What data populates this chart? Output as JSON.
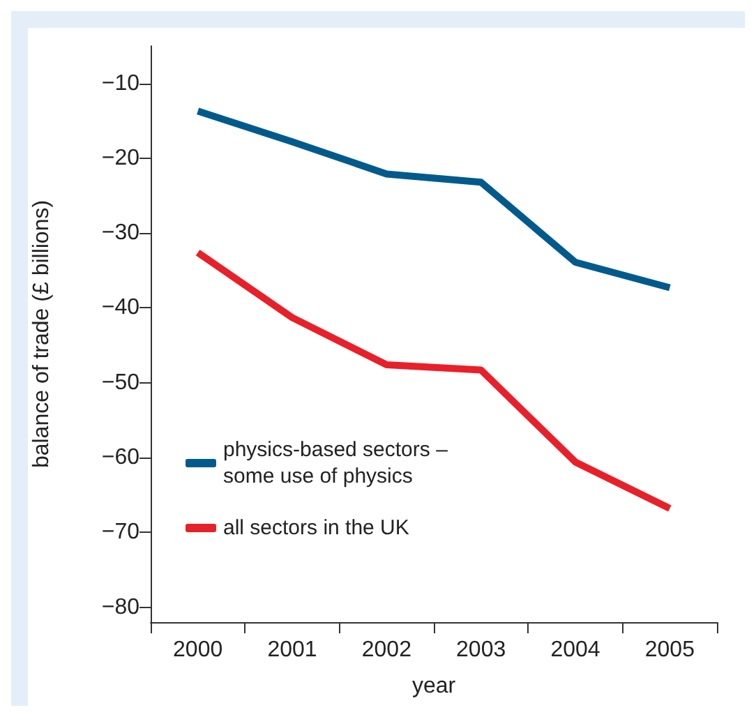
{
  "chart_data": {
    "type": "line",
    "xlabel": "year",
    "ylabel": "balance of trade (£ billions)",
    "categories": [
      "2000",
      "2001",
      "2002",
      "2003",
      "2004",
      "2005"
    ],
    "series": [
      {
        "name": "physics-based sectors –\nsome use of physics",
        "color": "#005a8c",
        "values": [
          -13.7,
          -17.8,
          -22.1,
          -23.2,
          -33.9,
          -37.3
        ]
      },
      {
        "name": "all sectors in the UK",
        "color": "#e8202a",
        "values": [
          -32.6,
          -41.3,
          -47.6,
          -48.3,
          -60.6,
          -66.8
        ]
      }
    ],
    "ylim": [
      -82,
      -5
    ],
    "yticks": [
      -10,
      -20,
      -30,
      -40,
      -50,
      -60,
      -70,
      -80
    ],
    "grid": false,
    "legend": "left",
    "marker": "none",
    "line_style": "solid"
  }
}
